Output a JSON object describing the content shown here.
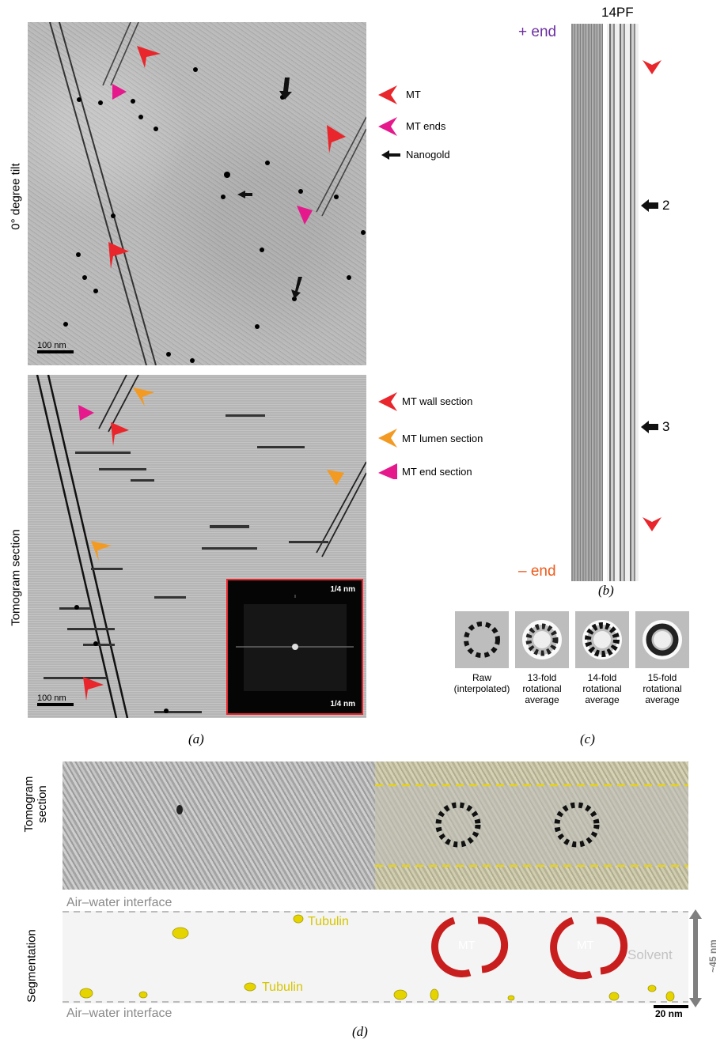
{
  "panel_a": {
    "top_label": "0° degree tilt",
    "bottom_label": "Tomogram section",
    "scale_top": "100 nm",
    "scale_bottom": "100 nm",
    "fft_top": "1/4 nm",
    "fft_bottom": "1/4 nm",
    "legend_top": [
      {
        "label": "MT",
        "color": "#e8262b"
      },
      {
        "label": "MT ends",
        "color": "#e5198c"
      },
      {
        "label": "Nanogold",
        "color": "#111111"
      }
    ],
    "legend_bottom": [
      {
        "label": "MT wall section",
        "color": "#e8262b"
      },
      {
        "label": "MT lumen section",
        "color": "#f39a22"
      },
      {
        "label": "MT end section",
        "color": "#e5198c"
      }
    ],
    "caption": "(a)"
  },
  "panel_b": {
    "header": "14PF",
    "plus_end": "+ end",
    "minus_end": "– end",
    "marker_2": "2",
    "marker_3": "3",
    "caption": "(b)"
  },
  "panel_c": {
    "labels": [
      "Raw\n(interpolated)",
      "13-fold\nrotational\naverage",
      "14-fold\nrotational\naverage",
      "15-fold\nrotational\naverage"
    ],
    "caption": "(c)"
  },
  "panel_d": {
    "tomo_label": "Tomogram\nsection",
    "seg_label": "Segmentation",
    "interface_top": "Air–water interface",
    "interface_bottom": "Air–water interface",
    "tubulin_1": "Tubulin",
    "tubulin_2": "Tubulin",
    "mt_1": "MT",
    "mt_2": "MT",
    "solvent": "Solvent",
    "thickness": "~45 nm",
    "scale": "20 nm",
    "caption": "(d)"
  }
}
